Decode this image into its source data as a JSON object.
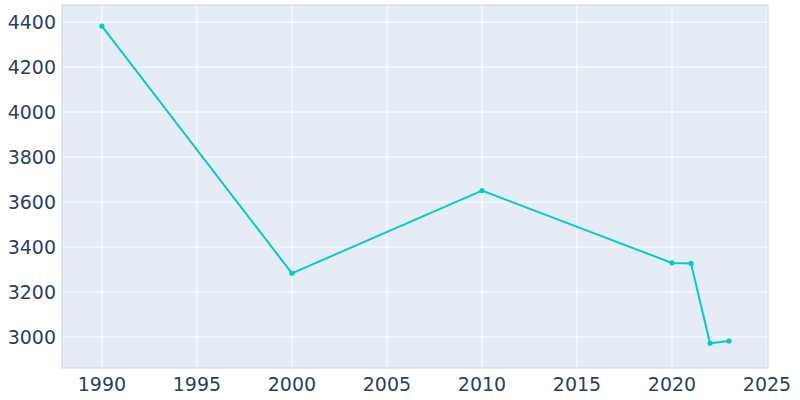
{
  "chart_data": {
    "type": "line",
    "x": [
      1990,
      2000,
      2010,
      2020,
      2021,
      2022,
      2023
    ],
    "values": [
      4382,
      3283,
      3651,
      3329,
      3327,
      2972,
      2982
    ],
    "color": "#00cccc",
    "marker": "circle",
    "xlim": [
      1987.9,
      2025.05
    ],
    "ylim": [
      2862,
      4476
    ],
    "xticks": [
      1990,
      1995,
      2000,
      2005,
      2010,
      2015,
      2020,
      2025
    ],
    "yticks": [
      3000,
      3200,
      3400,
      3600,
      3800,
      4000,
      4200,
      4400
    ],
    "grid": true
  }
}
